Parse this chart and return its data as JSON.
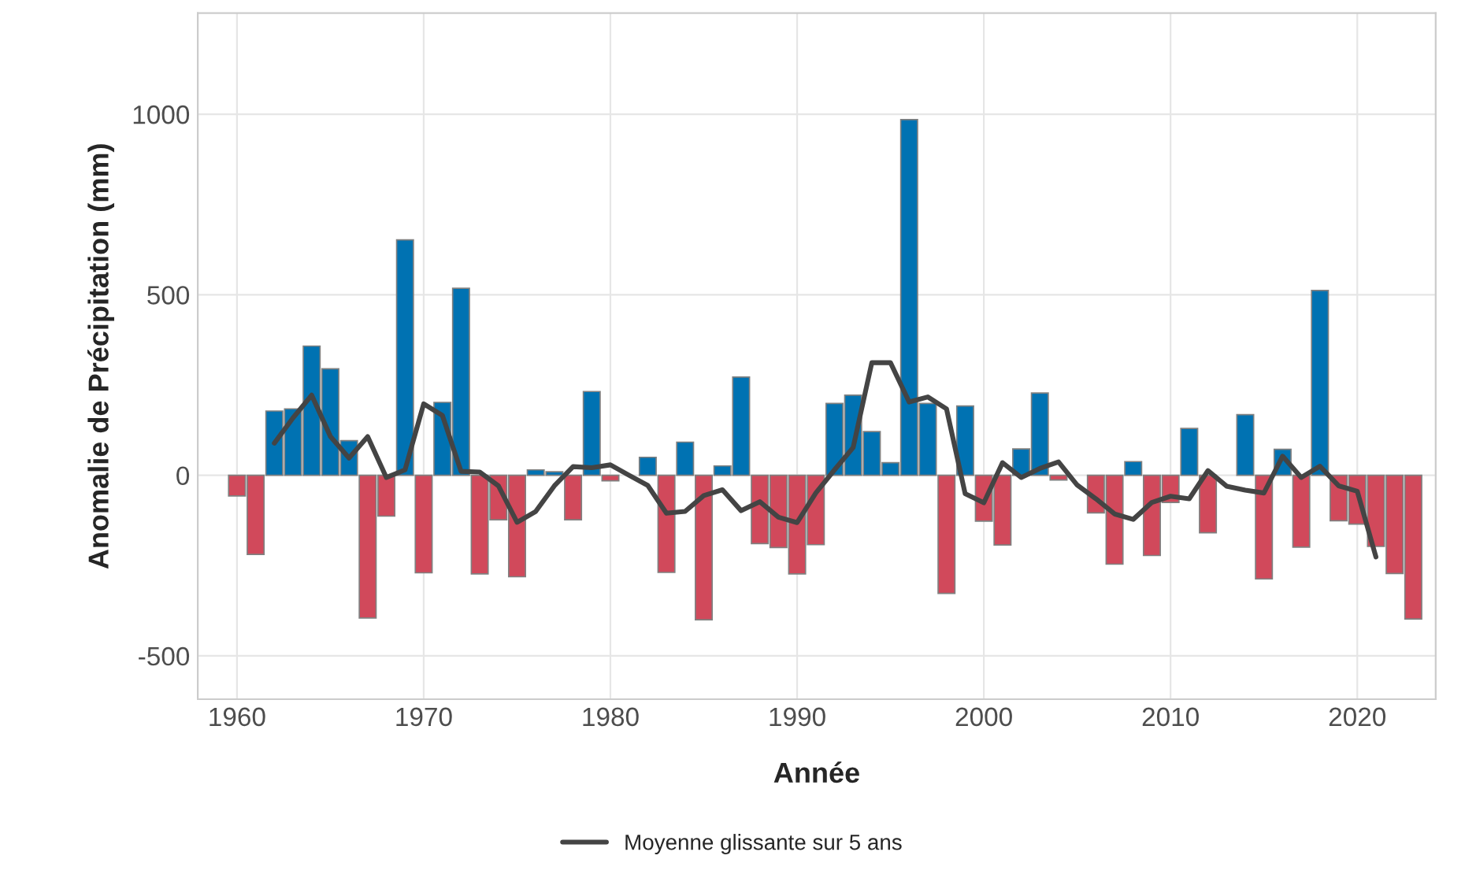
{
  "chart_data": {
    "type": "bar",
    "xlabel": "Année",
    "ylabel": "Anomalie de Précipitation (mm)",
    "xlim": [
      1957.9,
      2024.2
    ],
    "xticks": [
      1960,
      1970,
      1980,
      1990,
      2000,
      2010,
      2020
    ],
    "ylim": [
      -620,
      1280
    ],
    "yticks": [
      -500,
      0,
      500,
      1000
    ],
    "grid": true,
    "legend": "bottom",
    "series": [
      {
        "x": [
          1960,
          1961,
          1962,
          1963,
          1964,
          1965,
          1966,
          1967,
          1968,
          1969,
          1970,
          1971,
          1972,
          1973,
          1974,
          1975,
          1976,
          1977,
          1978,
          1979,
          1980,
          1981,
          1982,
          1983,
          1984,
          1985,
          1986,
          1987,
          1988,
          1989,
          1990,
          1991,
          1992,
          1993,
          1994,
          1995,
          1996,
          1997,
          1998,
          1999,
          2000,
          2001,
          2002,
          2003,
          2004,
          2005,
          2006,
          2007,
          2008,
          2009,
          2010,
          2011,
          2012,
          2013,
          2014,
          2015,
          2016,
          2017,
          2018,
          2019,
          2020,
          2021,
          2022,
          2023
        ],
        "values": [
          -57,
          -219,
          178,
          184,
          358,
          295,
          96,
          -395,
          -113,
          652,
          -270,
          202,
          518,
          -273,
          -123,
          -281,
          15,
          10,
          -123,
          232,
          -15,
          null,
          50,
          -269,
          92,
          -400,
          26,
          272,
          -189,
          -200,
          -273,
          -192,
          199,
          222,
          121,
          35,
          985,
          199,
          -327,
          192,
          -127,
          -193,
          73,
          228,
          -13,
          null,
          -104,
          -246,
          38,
          -222,
          -75,
          130,
          -159,
          null,
          168,
          -287,
          72,
          -199,
          512,
          -126,
          -135,
          -197,
          -272,
          -398
        ],
        "colors": [
          "#d1495b",
          "#d1495b",
          "#0072b2",
          "#0072b2",
          "#0072b2",
          "#0072b2",
          "#0072b2",
          "#d1495b",
          "#d1495b",
          "#0072b2",
          "#d1495b",
          "#0072b2",
          "#0072b2",
          "#d1495b",
          "#d1495b",
          "#d1495b",
          "#0072b2",
          "#0072b2",
          "#d1495b",
          "#0072b2",
          "#d1495b",
          "#0072b2",
          "#0072b2",
          "#d1495b",
          "#0072b2",
          "#d1495b",
          "#0072b2",
          "#0072b2",
          "#d1495b",
          "#d1495b",
          "#d1495b",
          "#d1495b",
          "#0072b2",
          "#0072b2",
          "#0072b2",
          "#0072b2",
          "#0072b2",
          "#0072b2",
          "#d1495b",
          "#0072b2",
          "#d1495b",
          "#d1495b",
          "#0072b2",
          "#0072b2",
          "#d1495b",
          "#0072b2",
          "#d1495b",
          "#d1495b",
          "#0072b2",
          "#d1495b",
          "#d1495b",
          "#0072b2",
          "#d1495b",
          "#0072b2",
          "#0072b2",
          "#d1495b",
          "#0072b2",
          "#d1495b",
          "#0072b2",
          "#d1495b",
          "#d1495b",
          "#d1495b",
          "#d1495b",
          "#d1495b"
        ]
      },
      {
        "type": "line",
        "name": "Moyenne glissante sur 5 ans",
        "color": "#444444",
        "x": [
          1962,
          1963,
          1964,
          1965,
          1966,
          1967,
          1968,
          1969,
          1970,
          1971,
          1972,
          1973,
          1974,
          1975,
          1976,
          1977,
          1978,
          1979,
          1980,
          1981,
          1982,
          1983,
          1984,
          1985,
          1986,
          1987,
          1988,
          1989,
          1990,
          1991,
          1992,
          1993,
          1994,
          1995,
          1996,
          1997,
          1998,
          1999,
          2000,
          2001,
          2002,
          2003,
          2004,
          2005,
          2006,
          2007,
          2008,
          2009,
          2010,
          2011,
          2012,
          2013,
          2014,
          2015,
          2016,
          2017,
          2018,
          2019,
          2020,
          2021
        ],
        "values": [
          89,
          159,
          222,
          108,
          48,
          107,
          -6,
          15,
          198,
          166,
          11,
          9,
          -29,
          -130,
          -100,
          -29,
          24,
          21,
          29,
          0,
          -28,
          -105,
          -100,
          -56,
          -40,
          -98,
          -73,
          -116,
          -131,
          -49,
          15,
          77,
          312,
          312,
          203,
          217,
          184,
          -51,
          -76,
          35,
          -6,
          19,
          37,
          -27,
          -65,
          -107,
          -122,
          -75,
          -58,
          -65,
          13,
          -30,
          -41,
          -49,
          53,
          -6,
          25,
          -29,
          -44,
          -226
        ]
      }
    ]
  }
}
